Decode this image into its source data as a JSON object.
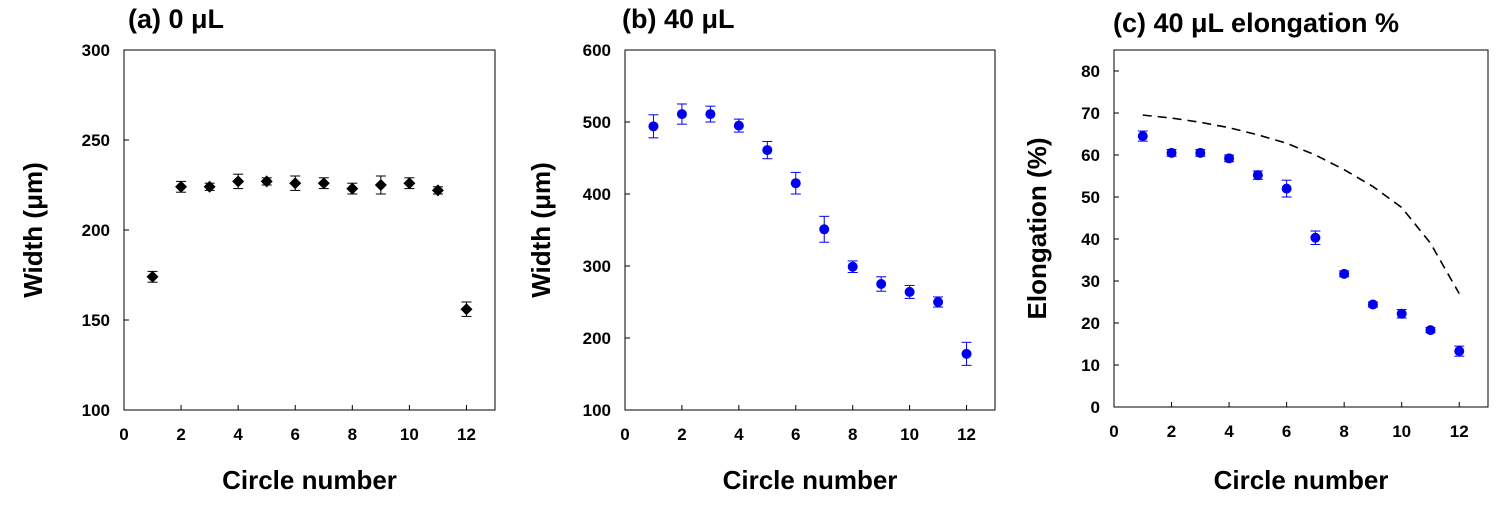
{
  "chart_data": [
    {
      "type": "scatter",
      "title": "(a) 0 μL",
      "xlabel": "Circle number",
      "ylabel": "Width (μm)",
      "xlim": [
        0,
        13
      ],
      "ylim": [
        100,
        300
      ],
      "xticks": [
        "0",
        "2",
        "4",
        "6",
        "8",
        "10",
        "12"
      ],
      "yticks": [
        "100",
        "150",
        "200",
        "250",
        "300"
      ],
      "marker": "diamond",
      "color": "#000000",
      "series": [
        {
          "name": "0 μL width",
          "x": [
            1,
            2,
            3,
            4,
            5,
            6,
            7,
            8,
            9,
            10,
            11,
            12
          ],
          "y": [
            174,
            224,
            224,
            227,
            227,
            226,
            226,
            223,
            225,
            226,
            222,
            156
          ],
          "err": [
            3,
            3,
            2,
            4,
            2,
            4,
            3,
            3,
            5,
            3,
            2,
            4
          ]
        }
      ]
    },
    {
      "type": "scatter",
      "title": "(b) 40 μL",
      "xlabel": "Circle number",
      "ylabel": "Width (μm)",
      "xlim": [
        0,
        13
      ],
      "ylim": [
        100,
        600
      ],
      "xticks": [
        "0",
        "2",
        "4",
        "6",
        "8",
        "10",
        "12"
      ],
      "yticks": [
        "100",
        "200",
        "300",
        "400",
        "500",
        "600"
      ],
      "marker": "circle",
      "color": "#0000ee",
      "series": [
        {
          "name": "40 μL width",
          "x": [
            1,
            2,
            3,
            4,
            5,
            6,
            7,
            8,
            9,
            10,
            11,
            12
          ],
          "y": [
            494,
            511,
            511,
            495,
            461,
            415,
            351,
            299,
            275,
            264,
            250,
            178
          ],
          "err": [
            16,
            14,
            11,
            9,
            12,
            15,
            18,
            8,
            10,
            9,
            7,
            16
          ]
        }
      ]
    },
    {
      "type": "scatter",
      "title": "(c) 40 μL elongation %",
      "xlabel": "Circle number",
      "ylabel": "Elongation (%)",
      "xlim": [
        0,
        13
      ],
      "ylim": [
        0,
        85
      ],
      "xticks": [
        "0",
        "2",
        "4",
        "6",
        "8",
        "10",
        "12"
      ],
      "yticks": [
        "0",
        "10",
        "20",
        "30",
        "40",
        "50",
        "60",
        "70",
        "80"
      ],
      "marker": "circle",
      "color": "#0000ee",
      "series": [
        {
          "name": "40 μL elongation",
          "x": [
            1,
            2,
            3,
            4,
            5,
            6,
            7,
            8,
            9,
            10,
            11,
            12
          ],
          "y": [
            64.5,
            60.5,
            60.5,
            59.2,
            55.2,
            52.0,
            40.3,
            31.7,
            24.4,
            22.2,
            18.3,
            13.3
          ],
          "err": [
            1.2,
            0.8,
            0.8,
            0.8,
            1.0,
            2.0,
            1.6,
            0.7,
            0.6,
            1.0,
            0.6,
            1.2
          ]
        }
      ],
      "trend": {
        "style": "dashed",
        "x": [
          1,
          2,
          3,
          4,
          5,
          6,
          7,
          8,
          9,
          10,
          11,
          12
        ],
        "y": [
          69.5,
          68.8,
          67.8,
          66.5,
          64.8,
          62.8,
          60.0,
          56.5,
          52.5,
          47.5,
          39.0,
          27.0
        ]
      }
    }
  ]
}
